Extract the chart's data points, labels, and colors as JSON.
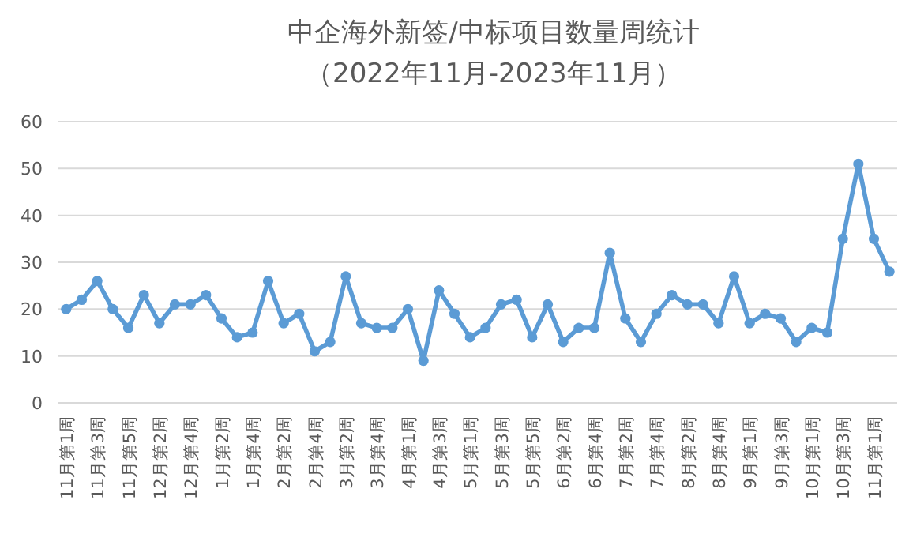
{
  "chart_data": {
    "type": "line",
    "title": "中企海外新签/中标项目数量周统计",
    "subtitle": "（2022年11月-2023年11月）",
    "categories": [
      "11月第1周",
      null,
      "11月第3周",
      null,
      "11月第5周",
      null,
      "12月第2周",
      null,
      "12月第4周",
      null,
      "1月第2周",
      null,
      "1月第4周",
      null,
      "2月第2周",
      null,
      "2月第4周",
      null,
      "3月第2周",
      null,
      "3月第4周",
      null,
      "4月第1周",
      null,
      "4月第3周",
      null,
      "5月第1周",
      null,
      "5月第3周",
      null,
      "5月第5周",
      null,
      "6月第2周",
      null,
      "6月第4周",
      null,
      "7月第2周",
      null,
      "7月第4周",
      null,
      "8月第2周",
      null,
      "8月第4周",
      null,
      "9月第1周",
      null,
      "9月第3周",
      null,
      "10月第1周",
      null,
      "10月第3周",
      null,
      "11月第1周",
      null
    ],
    "series": [
      {
        "color": "#5b9bd5",
        "values": [
          20,
          22,
          26,
          20,
          16,
          23,
          17,
          21,
          21,
          23,
          18,
          14,
          15,
          26,
          17,
          19,
          11,
          13,
          27,
          17,
          16,
          16,
          20,
          9,
          24,
          19,
          14,
          16,
          21,
          22,
          14,
          21,
          13,
          16,
          16,
          32,
          18,
          13,
          19,
          23,
          21,
          21,
          17,
          27,
          17,
          19,
          18,
          13,
          16,
          15,
          35,
          51,
          35,
          28
        ]
      }
    ],
    "ylim": [
      0,
      60
    ],
    "yticks": [
      0,
      10,
      20,
      30,
      40,
      50,
      60
    ],
    "grid": "y",
    "marker": "circle",
    "line_style": "solid"
  }
}
